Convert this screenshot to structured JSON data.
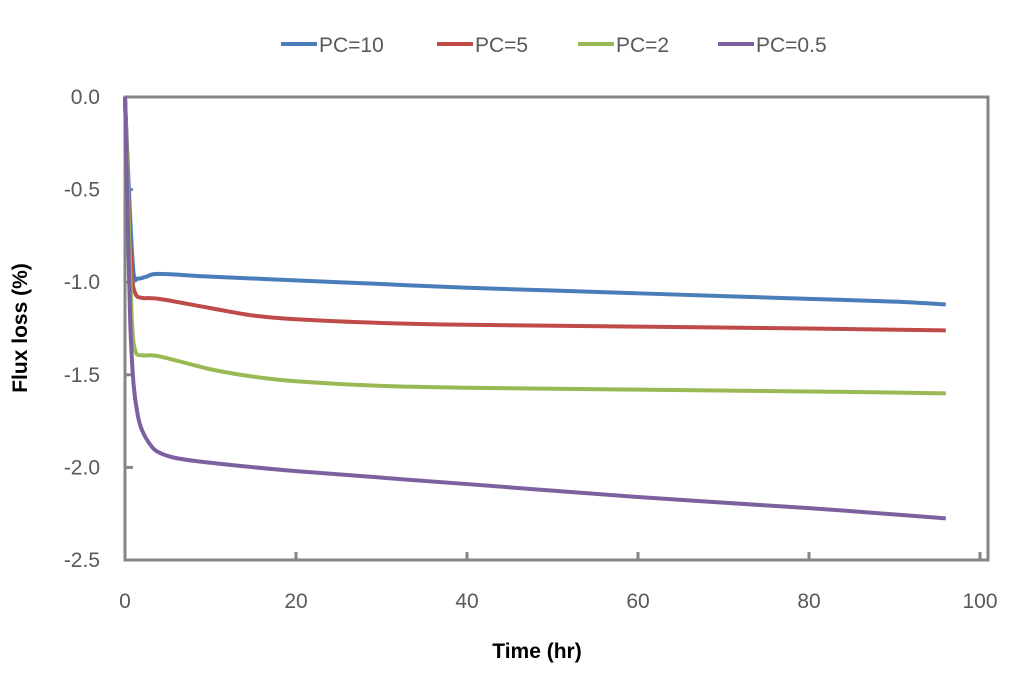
{
  "chart_data": {
    "type": "line",
    "title": "",
    "xlabel": "Time (hr)",
    "ylabel": "Flux loss (%)",
    "xlim": [
      0,
      100
    ],
    "ylim": [
      -2.5,
      0.0
    ],
    "xticks": [
      0,
      20,
      40,
      60,
      80,
      100
    ],
    "yticks": [
      0.0,
      -0.5,
      -1.0,
      -1.5,
      -2.0,
      -2.5
    ],
    "xtick_labels": [
      "0",
      "20",
      "40",
      "60",
      "80",
      "100"
    ],
    "ytick_labels": [
      "0.0",
      "-0.5",
      "-1.0",
      "-1.5",
      "-2.0",
      "-2.5"
    ],
    "grid": false,
    "legend_position": "top",
    "series": [
      {
        "name": "PC=10",
        "color": "#4a7ebb",
        "x": [
          0,
          0.5,
          1.0,
          1.5,
          2.5,
          4,
          10,
          20,
          30,
          40,
          50,
          60,
          70,
          80,
          90,
          96
        ],
        "y": [
          0,
          -0.55,
          -0.95,
          -0.98,
          -0.97,
          -0.955,
          -0.97,
          -0.99,
          -1.01,
          -1.03,
          -1.045,
          -1.06,
          -1.075,
          -1.09,
          -1.105,
          -1.12
        ]
      },
      {
        "name": "PC=5",
        "color": "#be4b48",
        "x": [
          0,
          0.4,
          0.8,
          1.2,
          2,
          4,
          10,
          15,
          20,
          30,
          40,
          60,
          80,
          96
        ],
        "y": [
          0,
          -0.55,
          -0.95,
          -1.06,
          -1.085,
          -1.09,
          -1.14,
          -1.18,
          -1.2,
          -1.22,
          -1.23,
          -1.24,
          -1.25,
          -1.26
        ]
      },
      {
        "name": "PC=2",
        "color": "#98b954",
        "x": [
          0,
          0.4,
          0.8,
          1.2,
          2,
          4,
          10,
          15,
          20,
          30,
          40,
          60,
          80,
          96
        ],
        "y": [
          0,
          -0.6,
          -1.2,
          -1.37,
          -1.395,
          -1.4,
          -1.47,
          -1.51,
          -1.535,
          -1.56,
          -1.57,
          -1.58,
          -1.59,
          -1.6
        ]
      },
      {
        "name": "PC=0.5",
        "color": "#7d60a0",
        "x": [
          0,
          0.3,
          0.6,
          1.0,
          1.5,
          2,
          3,
          4,
          6,
          10,
          20,
          40,
          60,
          80,
          96
        ],
        "y": [
          0,
          -0.6,
          -1.2,
          -1.55,
          -1.72,
          -1.8,
          -1.88,
          -1.92,
          -1.95,
          -1.975,
          -2.02,
          -2.09,
          -2.16,
          -2.22,
          -2.275
        ]
      }
    ]
  }
}
